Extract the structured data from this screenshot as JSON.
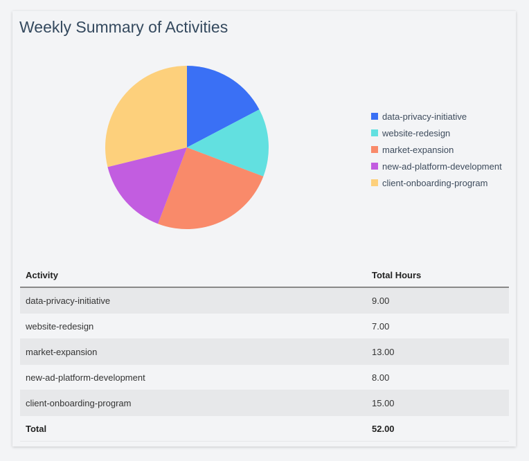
{
  "chart_data": {
    "type": "pie",
    "title": "Weekly Summary of Activities",
    "categories": [
      "data-privacy-initiative",
      "website-redesign",
      "market-expansion",
      "new-ad-platform-development",
      "client-onboarding-program"
    ],
    "values": [
      9,
      7,
      13,
      8,
      15
    ],
    "colors": [
      "#3a70f5",
      "#62e0e0",
      "#f98a6a",
      "#c25de0",
      "#fdd07c"
    ],
    "legend": "right"
  },
  "table": {
    "headers": [
      "Activity",
      "Total Hours"
    ],
    "rows": [
      [
        "data-privacy-initiative",
        "9.00"
      ],
      [
        "website-redesign",
        "7.00"
      ],
      [
        "market-expansion",
        "13.00"
      ],
      [
        "new-ad-platform-development",
        "8.00"
      ],
      [
        "client-onboarding-program",
        "15.00"
      ]
    ],
    "total": [
      "Total",
      "52.00"
    ]
  }
}
